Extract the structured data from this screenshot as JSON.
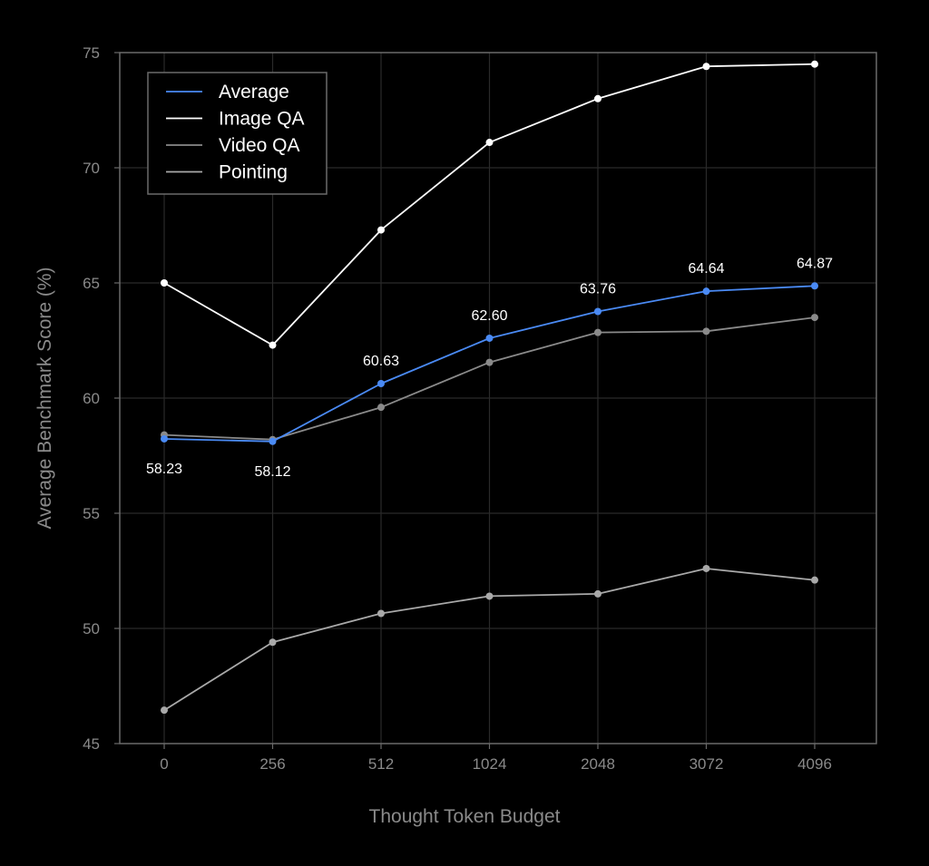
{
  "chart_data": {
    "type": "line",
    "title": "",
    "xlabel": "Thought Token Budget",
    "ylabel": "Average Benchmark Score (%)",
    "categories": [
      "0",
      "256",
      "512",
      "1024",
      "2048",
      "3072",
      "4096"
    ],
    "ylim": [
      45,
      75
    ],
    "yticks": [
      45,
      50,
      55,
      60,
      65,
      70,
      75
    ],
    "grid": true,
    "legend_position": "top-left",
    "series": [
      {
        "name": "Average",
        "color": "#4a8af4",
        "values": [
          58.23,
          58.12,
          60.63,
          62.6,
          63.76,
          64.64,
          64.87
        ],
        "labels": [
          "58.23",
          "58.12",
          "60.63",
          "62.60",
          "63.76",
          "64.64",
          "64.87"
        ]
      },
      {
        "name": "Image QA",
        "color": "#ffffff",
        "values": [
          65.0,
          62.3,
          67.3,
          71.1,
          73.0,
          74.4,
          74.5
        ]
      },
      {
        "name": "Video QA",
        "color": "#8a8a8a",
        "values": [
          58.4,
          58.2,
          59.6,
          61.55,
          62.85,
          62.9,
          63.5
        ]
      },
      {
        "name": "Pointing",
        "color": "#a9a9a9",
        "values": [
          46.45,
          49.4,
          50.65,
          51.4,
          51.5,
          52.6,
          52.1
        ]
      }
    ]
  }
}
